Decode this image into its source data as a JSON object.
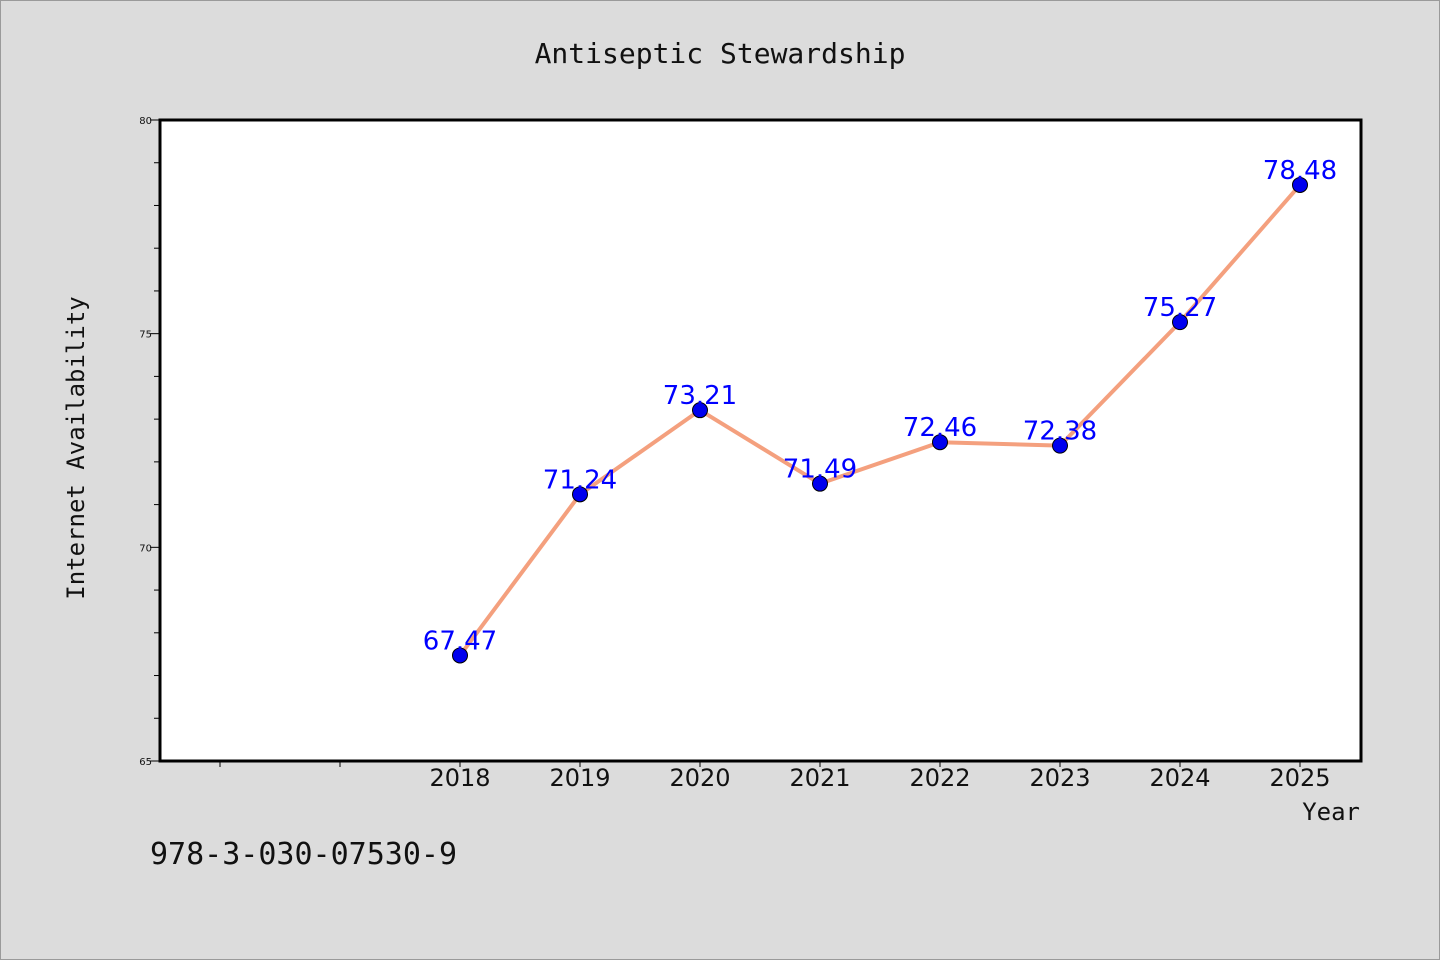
{
  "chart_data": {
    "type": "line",
    "title": "Antiseptic Stewardship",
    "xlabel": "Year",
    "ylabel": "Internet Availability",
    "x": [
      "2018",
      "2019",
      "2020",
      "2021",
      "2022",
      "2023",
      "2024",
      "2025"
    ],
    "series": [
      {
        "values": [
          67.47,
          71.24,
          73.21,
          71.49,
          72.46,
          72.38,
          75.27,
          78.48
        ]
      }
    ],
    "data_labels": [
      "67.47",
      "71.24",
      "73.21",
      "71.49",
      "72.46",
      "72.38",
      "75.27",
      "78.48"
    ],
    "ylim": [
      65,
      80
    ],
    "y_ticks": [
      "65",
      "70",
      "75",
      "80"
    ],
    "grid": false,
    "legend": "none",
    "colors": {
      "line": "#f4a07e",
      "marker": "#0000ee",
      "label": "#0000ff",
      "plot_background": "#ffffff",
      "page_background": "#dcdcdc"
    }
  },
  "footnote": "978-3-030-07530-9"
}
